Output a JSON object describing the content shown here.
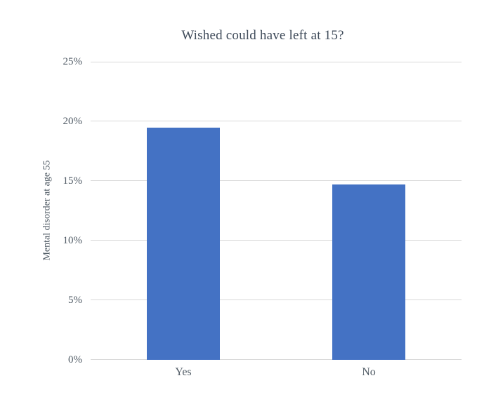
{
  "chart_data": {
    "type": "bar",
    "title": "Wished could have left at 15?",
    "ylabel": "Mental disorder at age 55",
    "xlabel": "",
    "categories": [
      "Yes",
      "No"
    ],
    "values": [
      19.5,
      14.7
    ],
    "unit": "%",
    "ylim": [
      0,
      25
    ],
    "yticks": [
      0,
      5,
      10,
      15,
      20,
      25
    ],
    "ytick_labels": [
      "0%",
      "5%",
      "10%",
      "15%",
      "20%",
      "25%"
    ],
    "grid": true,
    "legend": false,
    "colors": {
      "bar": "#4472C4",
      "gridline": "#D9D9D9",
      "axis_line": "#D9D9D9",
      "title_text": "#3E4A59",
      "tick_text": "#4F5A64",
      "background": "#FFFFFF"
    }
  }
}
